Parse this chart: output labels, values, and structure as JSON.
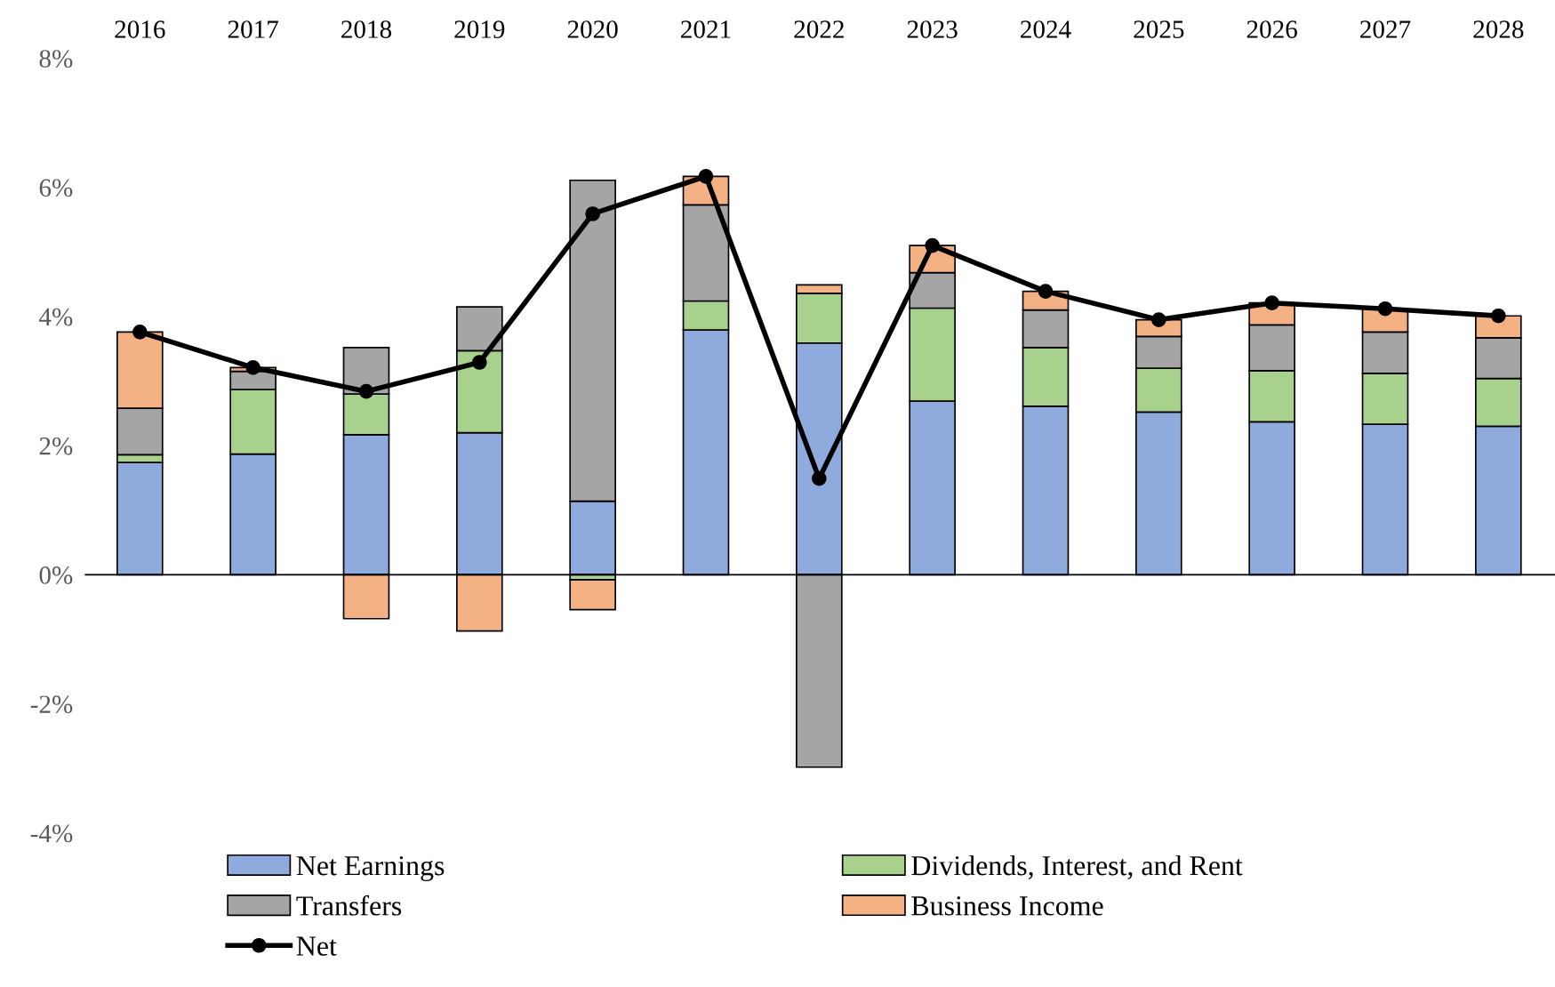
{
  "chart_data": {
    "type": "bar",
    "stacked": true,
    "categories": [
      "2016",
      "2017",
      "2018",
      "2019",
      "2020",
      "2021",
      "2022",
      "2023",
      "2024",
      "2025",
      "2026",
      "2027",
      "2028"
    ],
    "series": [
      {
        "name": "Net Earnings",
        "color": "#8faadc",
        "values": [
          1.74,
          1.87,
          2.17,
          2.2,
          1.14,
          3.79,
          3.59,
          2.69,
          2.61,
          2.52,
          2.37,
          2.33,
          2.3
        ]
      },
      {
        "name": "Dividends, Interest, and Rent",
        "color": "#a9d18e",
        "values": [
          0.12,
          1.0,
          0.63,
          1.27,
          -0.08,
          0.45,
          0.77,
          1.44,
          0.91,
          0.68,
          0.79,
          0.79,
          0.74
        ]
      },
      {
        "name": "Transfers",
        "color": "#a5a5a5",
        "values": [
          0.72,
          0.28,
          0.72,
          0.68,
          4.97,
          1.49,
          -2.98,
          0.55,
          0.58,
          0.49,
          0.71,
          0.64,
          0.63
        ]
      },
      {
        "name": "Business Income",
        "color": "#f4b183",
        "values": [
          1.18,
          0.06,
          -0.68,
          -0.87,
          -0.46,
          0.44,
          0.13,
          0.42,
          0.29,
          0.26,
          0.34,
          0.36,
          0.34
        ]
      },
      {
        "name": "Net",
        "type": "line",
        "color": "#000000",
        "marker": "circle",
        "values": [
          3.76,
          3.21,
          2.84,
          3.29,
          5.59,
          6.17,
          1.49,
          5.1,
          4.39,
          3.95,
          4.21,
          4.12,
          4.01
        ]
      }
    ],
    "ylim": [
      -4,
      8
    ],
    "yticks": [
      {
        "value": -4,
        "label": "-4%"
      },
      {
        "value": -2,
        "label": "-2%"
      },
      {
        "value": 0,
        "label": "0%"
      },
      {
        "value": 2,
        "label": "2%"
      },
      {
        "value": 4,
        "label": "4%"
      },
      {
        "value": 6,
        "label": "6%"
      },
      {
        "value": 8,
        "label": "8%"
      }
    ],
    "legend": "bottom"
  }
}
